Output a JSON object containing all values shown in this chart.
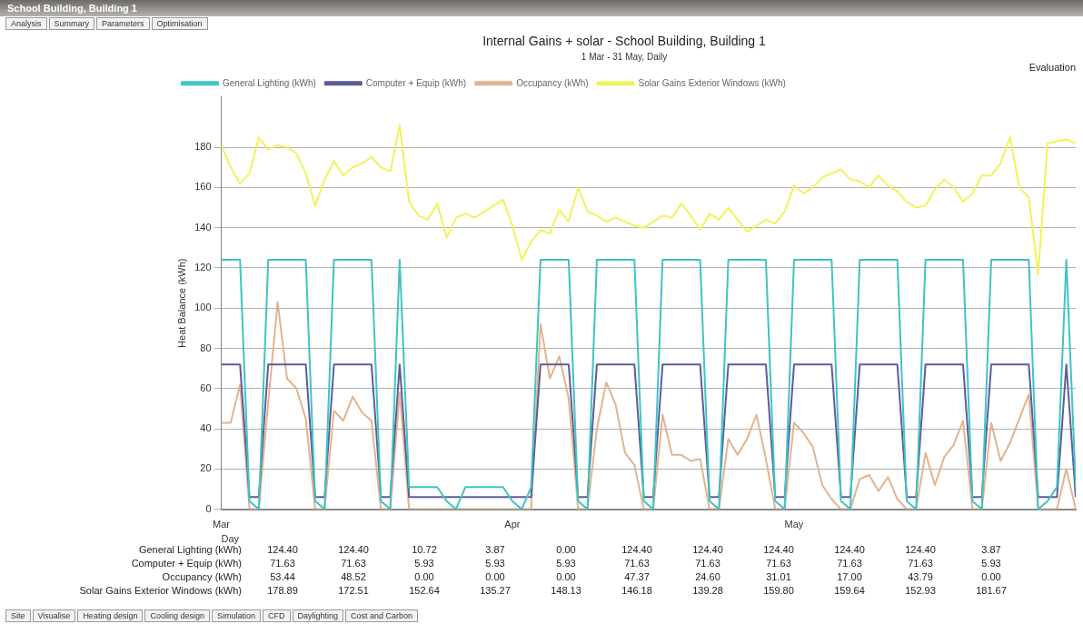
{
  "chart_data": [
    {
      "type": "line",
      "title": "Internal Gains + solar - School Building, Building 1",
      "subtitle": "1 Mar - 31 May, Daily",
      "xlabel": "Day",
      "ylabel": "Heat Balance (kWh)",
      "annotations": [
        "School Building, Building 1",
        "Analysis",
        "Summary",
        "Parameters",
        "Optimisation",
        "Evaluation",
        "Site",
        "Visualise",
        "Heating design",
        "Cooling design",
        "Simulation",
        "CFD",
        "Daylighting",
        "Cost and Carbon"
      ],
      "x": [
        "--03-01",
        "--03-02",
        "--03-03",
        "--03-04",
        "--03-05",
        "--03-06",
        "--03-07",
        "--03-08",
        "--03-09",
        "--03-10",
        "--03-11",
        "--03-12",
        "--03-13",
        "--03-14",
        "--03-15",
        "--03-16",
        "--03-17",
        "--03-18",
        "--03-19",
        "--03-20",
        "--03-21",
        "--03-22",
        "--03-23",
        "--03-24",
        "--03-25",
        "--03-26",
        "--03-27",
        "--03-28",
        "--03-29",
        "--03-30",
        "--03-31",
        "--04-01",
        "--04-02",
        "--04-03",
        "--04-04",
        "--04-05",
        "--04-06",
        "--04-07",
        "--04-08",
        "--04-09",
        "--04-10",
        "--04-11",
        "--04-12",
        "--04-13",
        "--04-14",
        "--04-15",
        "--04-16",
        "--04-17",
        "--04-18",
        "--04-19",
        "--04-20",
        "--04-21",
        "--04-22",
        "--04-23",
        "--04-24",
        "--04-25",
        "--04-26",
        "--04-27",
        "--04-28",
        "--04-29",
        "--04-30",
        "--05-01",
        "--05-02",
        "--05-03",
        "--05-04",
        "--05-05",
        "--05-06",
        "--05-07",
        "--05-08",
        "--05-09",
        "--05-10",
        "--05-11",
        "--05-12",
        "--05-13",
        "--05-14",
        "--05-15",
        "--05-16",
        "--05-17",
        "--05-18",
        "--05-19",
        "--05-20",
        "--05-21",
        "--05-22",
        "--05-23",
        "--05-24",
        "--05-25",
        "--05-26",
        "--05-27",
        "--05-28",
        "--05-29",
        "--05-30",
        "--05-31"
      ],
      "series": [
        {
          "name": "General Lighting (kWh)",
          "color": "#3fc4c4",
          "values": [
            124,
            124,
            124,
            4,
            0,
            124,
            124,
            124,
            124,
            124,
            4,
            0,
            124,
            124,
            124,
            124,
            124,
            4,
            0,
            124,
            11,
            11,
            11,
            11,
            4,
            0,
            11,
            11,
            11,
            11,
            11,
            4,
            0,
            11,
            124,
            124,
            124,
            124,
            4,
            0,
            124,
            124,
            124,
            124,
            124,
            4,
            0,
            124,
            124,
            124,
            124,
            124,
            4,
            0,
            124,
            124,
            124,
            124,
            124,
            4,
            0,
            124,
            124,
            124,
            124,
            124,
            4,
            0,
            124,
            124,
            124,
            124,
            124,
            4,
            0,
            124,
            124,
            124,
            124,
            124,
            4,
            0,
            124,
            124,
            124,
            124,
            124,
            0,
            4,
            11,
            124,
            11
          ]
        },
        {
          "name": "Computer + Equip (kWh)",
          "color": "#5c5c9c",
          "values": [
            72,
            72,
            72,
            6,
            6,
            72,
            72,
            72,
            72,
            72,
            6,
            6,
            72,
            72,
            72,
            72,
            72,
            6,
            6,
            72,
            6,
            6,
            6,
            6,
            6,
            6,
            6,
            6,
            6,
            6,
            6,
            6,
            6,
            6,
            72,
            72,
            72,
            72,
            6,
            6,
            72,
            72,
            72,
            72,
            72,
            6,
            6,
            72,
            72,
            72,
            72,
            72,
            6,
            6,
            72,
            72,
            72,
            72,
            72,
            6,
            6,
            72,
            72,
            72,
            72,
            72,
            6,
            6,
            72,
            72,
            72,
            72,
            72,
            6,
            6,
            72,
            72,
            72,
            72,
            72,
            6,
            6,
            72,
            72,
            72,
            72,
            72,
            6,
            6,
            6,
            72,
            6
          ]
        },
        {
          "name": "Occupancy (kWh)",
          "color": "#e2b48e",
          "values": [
            43,
            43,
            62,
            0,
            0,
            53,
            103,
            65,
            60,
            45,
            0,
            0,
            49,
            44,
            56,
            48,
            44,
            0,
            0,
            58,
            0,
            0,
            0,
            0,
            0,
            0,
            0,
            0,
            0,
            0,
            0,
            0,
            0,
            0,
            92,
            65,
            76,
            55,
            0,
            0,
            40,
            63,
            52,
            28,
            22,
            0,
            0,
            47,
            27,
            27,
            24,
            25,
            0,
            0,
            35,
            27,
            35,
            47,
            25,
            0,
            0,
            43,
            38,
            31,
            12,
            5,
            0,
            0,
            15,
            17,
            9,
            16,
            5,
            0,
            0,
            28,
            12,
            26,
            32,
            44,
            0,
            0,
            43,
            24,
            33,
            45,
            57,
            0,
            0,
            0,
            20,
            0
          ]
        },
        {
          "name": "Solar Gains Exterior Windows (kWh)",
          "color": "#f2f25c",
          "values": [
            181,
            170,
            162,
            167,
            185,
            179,
            181,
            180,
            177,
            167,
            151,
            164,
            173,
            166,
            170,
            172,
            175,
            170,
            168,
            191,
            153,
            146,
            144,
            152,
            135,
            145,
            147,
            145,
            148,
            151,
            154,
            141,
            124,
            133,
            139,
            137,
            149,
            143,
            160,
            148,
            146,
            143,
            145,
            143,
            141,
            140,
            143,
            146,
            145,
            152,
            146,
            139,
            147,
            144,
            150,
            144,
            138,
            141,
            144,
            142,
            148,
            161,
            157,
            160,
            165,
            167,
            169,
            164,
            163,
            160,
            166,
            161,
            158,
            153,
            150,
            151,
            159,
            164,
            160,
            153,
            157,
            166,
            166,
            172,
            185,
            160,
            155,
            117,
            182,
            183,
            184,
            182
          ]
        }
      ],
      "xlim": [
        "--03-01",
        "--05-31"
      ],
      "xticks": [
        {
          "value": "--03-01",
          "label": "Mar"
        },
        {
          "value": "--04-01",
          "label": "Apr"
        },
        {
          "value": "--05-01",
          "label": "May"
        }
      ],
      "ylim": [
        0,
        205
      ],
      "yticks": [
        0,
        20,
        40,
        60,
        80,
        100,
        120,
        140,
        160,
        180
      ],
      "grid": "y",
      "legend": "top",
      "marker": "none",
      "line_style": "solid"
    },
    {
      "type": "other",
      "y_categories": [
        "General Lighting (kWh)",
        "Computer + Equip (kWh)",
        "Occupancy (kWh)",
        "Solar Gains Exterior Windows (kWh)"
      ],
      "cell_labels": [
        [
          "124.40",
          "124.40",
          "10.72",
          "3.87",
          "0.00",
          "124.40",
          "124.40",
          "124.40",
          "124.40",
          "124.40",
          "3.87"
        ],
        [
          "71.63",
          "71.63",
          "5.93",
          "5.93",
          "5.93",
          "71.63",
          "71.63",
          "71.63",
          "71.63",
          "71.63",
          "5.93"
        ],
        [
          "53.44",
          "48.52",
          "0.00",
          "0.00",
          "0.00",
          "47.37",
          "24.60",
          "31.01",
          "17.00",
          "43.79",
          "0.00"
        ],
        [
          "178.89",
          "172.51",
          "152.64",
          "135.27",
          "148.13",
          "146.18",
          "139.28",
          "159.80",
          "159.64",
          "152.93",
          "181.67"
        ]
      ]
    }
  ]
}
